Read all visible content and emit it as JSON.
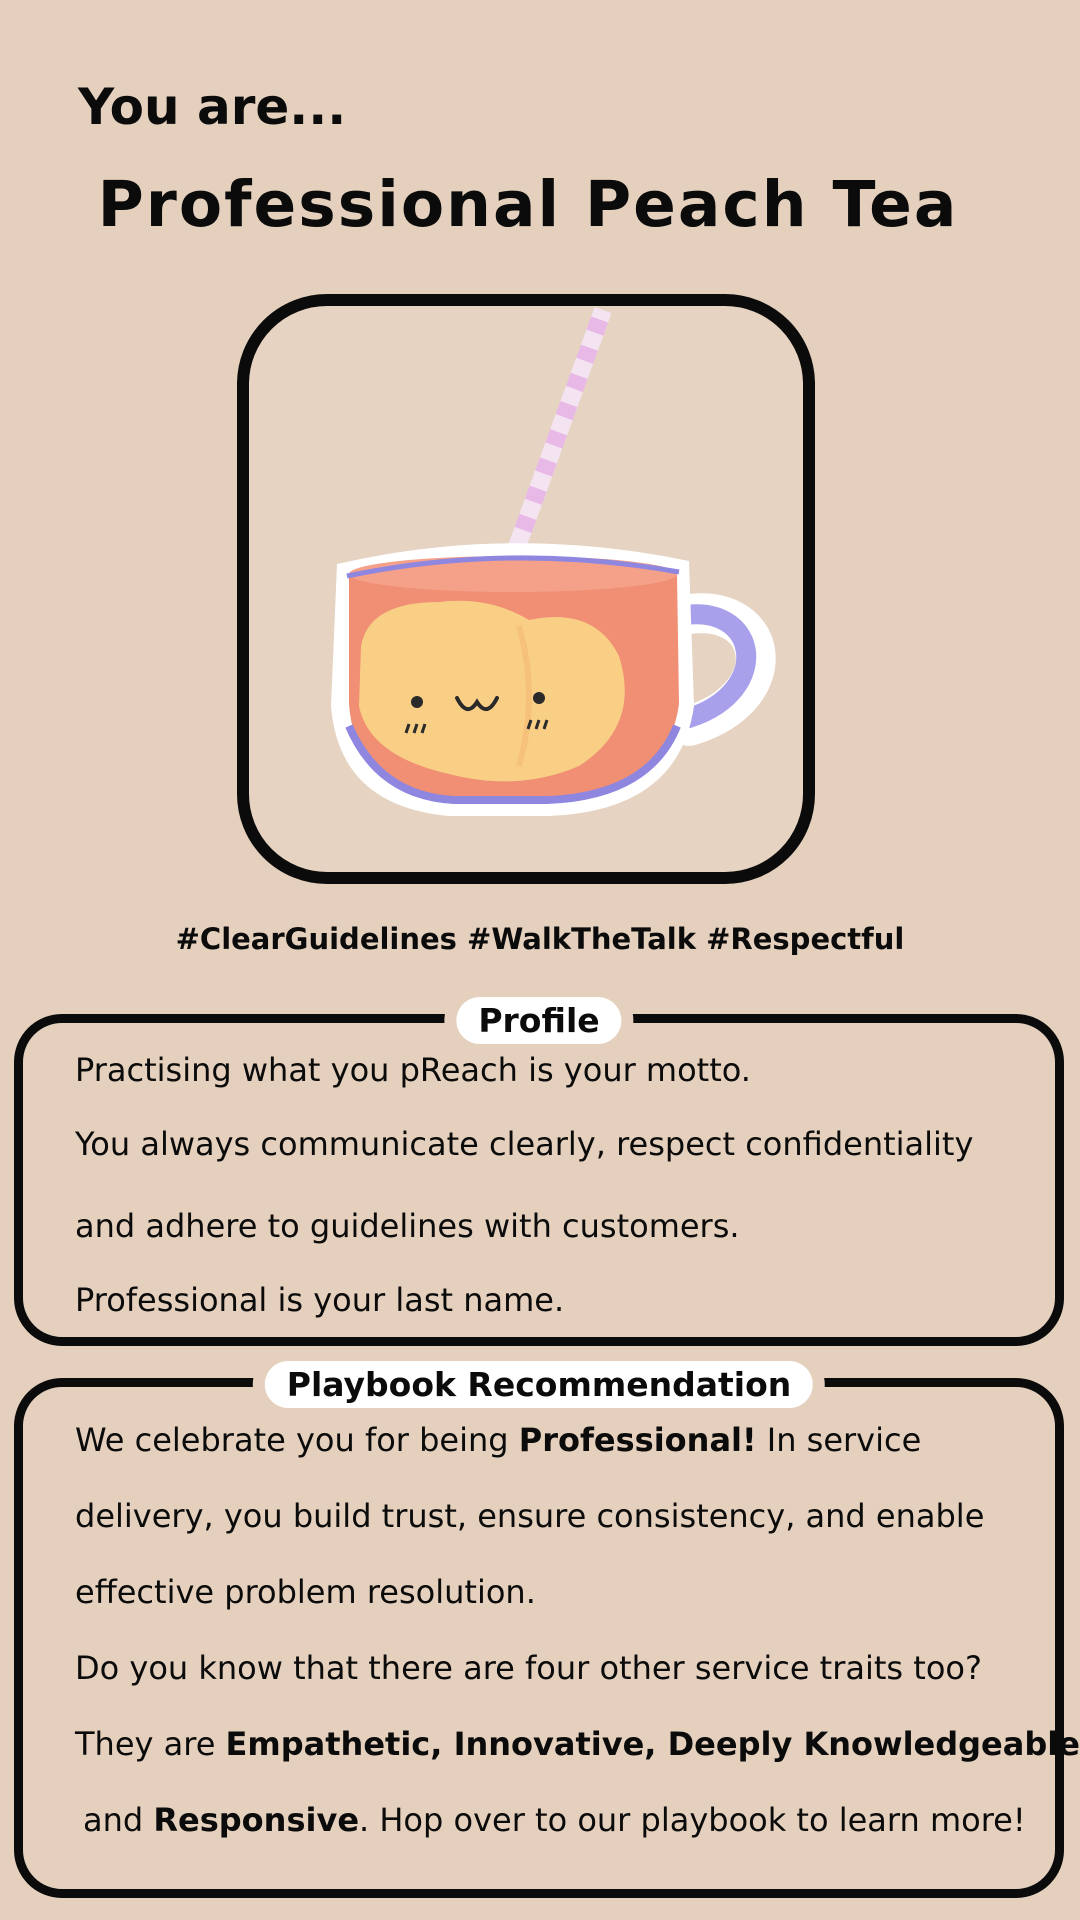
{
  "header": {
    "intro": "You are...",
    "title": "Professional Peach Tea"
  },
  "illustration": {
    "icon": "peach-tea-cup-illustration",
    "colors": {
      "tea": "#f08a70",
      "peach": "#f9cf86",
      "cup_outline": "#8f86e0",
      "straw": "#eac3ea"
    }
  },
  "hashtags": "#ClearGuidelines #WalkTheTalk #Respectful",
  "profile": {
    "label": "Profile",
    "lines": [
      "Practising what you pReach is your motto.",
      "You always communicate clearly, respect confidentiality",
      "and adhere to guidelines with customers.",
      "Professional is your last name."
    ]
  },
  "playbook": {
    "label": "Playbook Recommendation",
    "l1_a": "We celebrate you for being ",
    "l1_b": "Professional!",
    "l1_c": " In service",
    "l2": "delivery, you build trust, ensure consistency, and enable",
    "l3": "effective problem resolution.",
    "l4": "Do you know that there are four other service traits too?",
    "l5_a": "They are ",
    "l5_b": "Empathetic, Innovative, Deeply Knowledgeable,",
    "l6_a": "and ",
    "l6_b": "Responsive",
    "l6_c": ". Hop over to our playbook to learn more!"
  }
}
